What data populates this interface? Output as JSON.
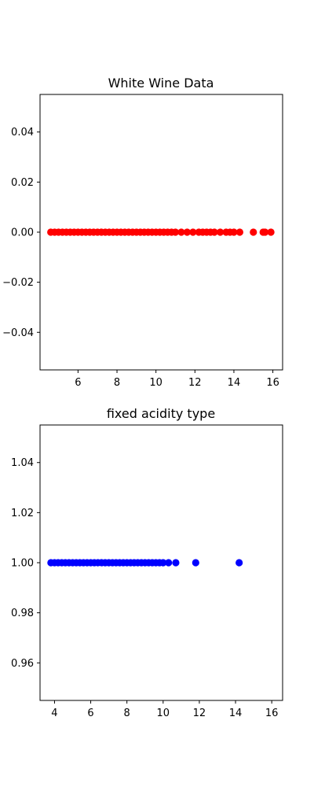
{
  "chart_data": [
    {
      "type": "scatter",
      "title": "White Wine Data",
      "xlabel": "",
      "ylabel": "",
      "color": "#ff0000",
      "xlim": [
        4.05,
        16.5
      ],
      "ylim": [
        -0.055,
        0.055
      ],
      "xticks": [
        6,
        8,
        10,
        12,
        14,
        16
      ],
      "xtick_labels": [
        "6",
        "8",
        "10",
        "12",
        "14",
        "16"
      ],
      "yticks": [
        -0.04,
        -0.02,
        0.0,
        0.02,
        0.04
      ],
      "ytick_labels": [
        "−0.04",
        "−0.02",
        "0.00",
        "0.02",
        "0.04"
      ],
      "grid": false,
      "points": [
        {
          "x": 4.6,
          "y": 0
        },
        {
          "x": 4.8,
          "y": 0
        },
        {
          "x": 5.0,
          "y": 0
        },
        {
          "x": 5.2,
          "y": 0
        },
        {
          "x": 5.4,
          "y": 0
        },
        {
          "x": 5.6,
          "y": 0
        },
        {
          "x": 5.8,
          "y": 0
        },
        {
          "x": 6.0,
          "y": 0
        },
        {
          "x": 6.2,
          "y": 0
        },
        {
          "x": 6.4,
          "y": 0
        },
        {
          "x": 6.6,
          "y": 0
        },
        {
          "x": 6.8,
          "y": 0
        },
        {
          "x": 7.0,
          "y": 0
        },
        {
          "x": 7.2,
          "y": 0
        },
        {
          "x": 7.4,
          "y": 0
        },
        {
          "x": 7.6,
          "y": 0
        },
        {
          "x": 7.8,
          "y": 0
        },
        {
          "x": 8.0,
          "y": 0
        },
        {
          "x": 8.2,
          "y": 0
        },
        {
          "x": 8.4,
          "y": 0
        },
        {
          "x": 8.6,
          "y": 0
        },
        {
          "x": 8.8,
          "y": 0
        },
        {
          "x": 9.0,
          "y": 0
        },
        {
          "x": 9.2,
          "y": 0
        },
        {
          "x": 9.4,
          "y": 0
        },
        {
          "x": 9.6,
          "y": 0
        },
        {
          "x": 9.8,
          "y": 0
        },
        {
          "x": 10.0,
          "y": 0
        },
        {
          "x": 10.2,
          "y": 0
        },
        {
          "x": 10.4,
          "y": 0
        },
        {
          "x": 10.6,
          "y": 0
        },
        {
          "x": 10.8,
          "y": 0
        },
        {
          "x": 11.0,
          "y": 0
        },
        {
          "x": 11.3,
          "y": 0
        },
        {
          "x": 11.6,
          "y": 0
        },
        {
          "x": 11.9,
          "y": 0
        },
        {
          "x": 12.2,
          "y": 0
        },
        {
          "x": 12.4,
          "y": 0
        },
        {
          "x": 12.6,
          "y": 0
        },
        {
          "x": 12.8,
          "y": 0
        },
        {
          "x": 13.0,
          "y": 0
        },
        {
          "x": 13.3,
          "y": 0
        },
        {
          "x": 13.6,
          "y": 0
        },
        {
          "x": 13.8,
          "y": 0
        },
        {
          "x": 14.0,
          "y": 0
        },
        {
          "x": 14.3,
          "y": 0
        },
        {
          "x": 15.0,
          "y": 0
        },
        {
          "x": 15.5,
          "y": 0
        },
        {
          "x": 15.6,
          "y": 0
        },
        {
          "x": 15.9,
          "y": 0
        }
      ]
    },
    {
      "type": "scatter",
      "title": "fixed acidity type",
      "xlabel": "",
      "ylabel": "",
      "color": "#0000ff",
      "xlim": [
        3.2,
        16.6
      ],
      "ylim": [
        0.945,
        1.055
      ],
      "xticks": [
        4,
        6,
        8,
        10,
        12,
        14,
        16
      ],
      "xtick_labels": [
        "4",
        "6",
        "8",
        "10",
        "12",
        "14",
        "16"
      ],
      "yticks": [
        0.96,
        0.98,
        1.0,
        1.02,
        1.04
      ],
      "ytick_labels": [
        "0.96",
        "0.98",
        "1.00",
        "1.02",
        "1.04"
      ],
      "grid": false,
      "points": [
        {
          "x": 3.8,
          "y": 1
        },
        {
          "x": 4.0,
          "y": 1
        },
        {
          "x": 4.2,
          "y": 1
        },
        {
          "x": 4.4,
          "y": 1
        },
        {
          "x": 4.6,
          "y": 1
        },
        {
          "x": 4.8,
          "y": 1
        },
        {
          "x": 5.0,
          "y": 1
        },
        {
          "x": 5.2,
          "y": 1
        },
        {
          "x": 5.4,
          "y": 1
        },
        {
          "x": 5.6,
          "y": 1
        },
        {
          "x": 5.8,
          "y": 1
        },
        {
          "x": 6.0,
          "y": 1
        },
        {
          "x": 6.2,
          "y": 1
        },
        {
          "x": 6.4,
          "y": 1
        },
        {
          "x": 6.6,
          "y": 1
        },
        {
          "x": 6.8,
          "y": 1
        },
        {
          "x": 7.0,
          "y": 1
        },
        {
          "x": 7.2,
          "y": 1
        },
        {
          "x": 7.4,
          "y": 1
        },
        {
          "x": 7.6,
          "y": 1
        },
        {
          "x": 7.8,
          "y": 1
        },
        {
          "x": 8.0,
          "y": 1
        },
        {
          "x": 8.2,
          "y": 1
        },
        {
          "x": 8.4,
          "y": 1
        },
        {
          "x": 8.6,
          "y": 1
        },
        {
          "x": 8.8,
          "y": 1
        },
        {
          "x": 9.0,
          "y": 1
        },
        {
          "x": 9.2,
          "y": 1
        },
        {
          "x": 9.4,
          "y": 1
        },
        {
          "x": 9.6,
          "y": 1
        },
        {
          "x": 9.8,
          "y": 1
        },
        {
          "x": 10.0,
          "y": 1
        },
        {
          "x": 10.3,
          "y": 1
        },
        {
          "x": 10.7,
          "y": 1
        },
        {
          "x": 11.8,
          "y": 1
        },
        {
          "x": 14.2,
          "y": 1
        }
      ]
    }
  ]
}
